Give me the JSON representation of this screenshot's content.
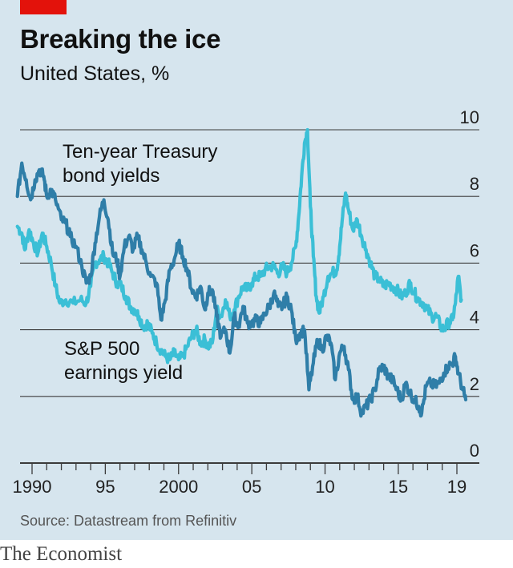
{
  "header": {
    "title": "Breaking the ice",
    "subtitle": "United States, %"
  },
  "footer": {
    "source": "Source: Datastream from Refinitiv",
    "brand": "The Economist"
  },
  "colors": {
    "background": "#d6e5ee",
    "accent": "#e3120b",
    "treasury": "#2f7ea8",
    "sp500": "#3bbfd6",
    "gridline": "#3b3b3b"
  },
  "chart_data": {
    "type": "line",
    "x_range": [
      1989,
      2020
    ],
    "ylim": [
      0,
      10
    ],
    "y_ticks": [
      0,
      2,
      4,
      6,
      8,
      10
    ],
    "y_tick_labels": [
      "0",
      "2",
      "4",
      "6",
      "8",
      "10"
    ],
    "x_tick_labels": [
      {
        "year": 1990,
        "label": "1990"
      },
      {
        "year": 1995,
        "label": "95"
      },
      {
        "year": 2000,
        "label": "2000"
      },
      {
        "year": 2005,
        "label": "05"
      },
      {
        "year": 2010,
        "label": "10"
      },
      {
        "year": 2015,
        "label": "15"
      },
      {
        "year": 2019,
        "label": "19"
      }
    ],
    "grid": "horizontal",
    "y_axis_position": "right",
    "series": [
      {
        "name": "Ten-year Treasury bond yields",
        "label_lines": [
          "Ten-year Treasury",
          "bond yields"
        ],
        "color": "#2f7ea8",
        "points": [
          [
            1989.0,
            8.0
          ],
          [
            1989.3,
            9.0
          ],
          [
            1989.6,
            8.5
          ],
          [
            1989.9,
            7.9
          ],
          [
            1990.2,
            8.5
          ],
          [
            1990.5,
            8.8
          ],
          [
            1990.8,
            8.6
          ],
          [
            1991.0,
            8.0
          ],
          [
            1991.3,
            8.2
          ],
          [
            1991.6,
            7.9
          ],
          [
            1992.0,
            7.3
          ],
          [
            1992.3,
            7.2
          ],
          [
            1992.6,
            6.8
          ],
          [
            1993.0,
            6.5
          ],
          [
            1993.4,
            5.9
          ],
          [
            1993.7,
            5.4
          ],
          [
            1994.0,
            5.6
          ],
          [
            1994.3,
            6.6
          ],
          [
            1994.6,
            7.4
          ],
          [
            1994.9,
            7.9
          ],
          [
            1995.2,
            7.3
          ],
          [
            1995.5,
            6.3
          ],
          [
            1995.8,
            6.1
          ],
          [
            1996.0,
            5.6
          ],
          [
            1996.3,
            6.5
          ],
          [
            1996.6,
            6.8
          ],
          [
            1996.9,
            6.4
          ],
          [
            1997.2,
            6.8
          ],
          [
            1997.5,
            6.4
          ],
          [
            1997.8,
            6.0
          ],
          [
            1998.1,
            5.6
          ],
          [
            1998.5,
            5.4
          ],
          [
            1998.8,
            4.3
          ],
          [
            1999.1,
            4.9
          ],
          [
            1999.4,
            5.8
          ],
          [
            1999.7,
            6.1
          ],
          [
            2000.0,
            6.6
          ],
          [
            2000.3,
            6.2
          ],
          [
            2000.6,
            5.8
          ],
          [
            2000.9,
            5.2
          ],
          [
            2001.2,
            5.0
          ],
          [
            2001.5,
            5.3
          ],
          [
            2001.8,
            4.6
          ],
          [
            2002.0,
            5.1
          ],
          [
            2002.3,
            5.2
          ],
          [
            2002.6,
            4.4
          ],
          [
            2002.9,
            3.8
          ],
          [
            2003.2,
            4.0
          ],
          [
            2003.5,
            3.3
          ],
          [
            2003.8,
            4.4
          ],
          [
            2004.1,
            4.1
          ],
          [
            2004.4,
            4.7
          ],
          [
            2004.7,
            4.2
          ],
          [
            2005.0,
            4.2
          ],
          [
            2005.3,
            4.3
          ],
          [
            2005.6,
            4.2
          ],
          [
            2005.9,
            4.5
          ],
          [
            2006.2,
            4.7
          ],
          [
            2006.5,
            5.1
          ],
          [
            2006.8,
            4.7
          ],
          [
            2007.1,
            4.7
          ],
          [
            2007.4,
            5.0
          ],
          [
            2007.7,
            4.6
          ],
          [
            2008.0,
            3.7
          ],
          [
            2008.3,
            3.9
          ],
          [
            2008.6,
            4.0
          ],
          [
            2008.9,
            2.2
          ],
          [
            2009.2,
            3.0
          ],
          [
            2009.5,
            3.7
          ],
          [
            2009.8,
            3.4
          ],
          [
            2010.1,
            3.8
          ],
          [
            2010.4,
            3.6
          ],
          [
            2010.7,
            2.5
          ],
          [
            2011.0,
            3.3
          ],
          [
            2011.3,
            3.5
          ],
          [
            2011.6,
            2.8
          ],
          [
            2011.9,
            1.9
          ],
          [
            2012.2,
            2.0
          ],
          [
            2012.5,
            1.5
          ],
          [
            2012.8,
            1.7
          ],
          [
            2013.1,
            1.9
          ],
          [
            2013.4,
            2.2
          ],
          [
            2013.7,
            2.8
          ],
          [
            2014.0,
            2.9
          ],
          [
            2014.3,
            2.6
          ],
          [
            2014.6,
            2.5
          ],
          [
            2014.9,
            2.2
          ],
          [
            2015.2,
            1.9
          ],
          [
            2015.5,
            2.4
          ],
          [
            2015.8,
            2.1
          ],
          [
            2016.1,
            1.9
          ],
          [
            2016.4,
            1.7
          ],
          [
            2016.6,
            1.5
          ],
          [
            2016.9,
            2.3
          ],
          [
            2017.2,
            2.4
          ],
          [
            2017.5,
            2.3
          ],
          [
            2017.8,
            2.4
          ],
          [
            2018.1,
            2.7
          ],
          [
            2018.4,
            2.9
          ],
          [
            2018.7,
            3.0
          ],
          [
            2018.9,
            3.2
          ],
          [
            2019.1,
            2.7
          ],
          [
            2019.4,
            2.2
          ],
          [
            2019.6,
            1.9
          ]
        ]
      },
      {
        "name": "S&P 500 earnings yield",
        "label_lines": [
          "S&P 500",
          "earnings yield"
        ],
        "color": "#3bbfd6",
        "points": [
          [
            1989.0,
            7.1
          ],
          [
            1989.3,
            6.9
          ],
          [
            1989.5,
            6.4
          ],
          [
            1989.8,
            7.0
          ],
          [
            1990.1,
            6.6
          ],
          [
            1990.4,
            6.3
          ],
          [
            1990.7,
            6.9
          ],
          [
            1991.0,
            6.5
          ],
          [
            1991.3,
            6.0
          ],
          [
            1991.6,
            5.3
          ],
          [
            1991.9,
            4.8
          ],
          [
            1992.3,
            4.9
          ],
          [
            1992.8,
            4.8
          ],
          [
            1993.3,
            4.9
          ],
          [
            1993.7,
            4.8
          ],
          [
            1994.0,
            5.3
          ],
          [
            1994.3,
            6.0
          ],
          [
            1994.6,
            6.1
          ],
          [
            1994.9,
            6.2
          ],
          [
            1995.2,
            6.0
          ],
          [
            1995.5,
            5.7
          ],
          [
            1995.8,
            5.4
          ],
          [
            1996.1,
            5.3
          ],
          [
            1996.4,
            5.0
          ],
          [
            1996.7,
            4.7
          ],
          [
            1997.0,
            4.6
          ],
          [
            1997.3,
            4.4
          ],
          [
            1997.6,
            4.1
          ],
          [
            1997.9,
            4.2
          ],
          [
            1998.2,
            3.9
          ],
          [
            1998.5,
            3.6
          ],
          [
            1998.8,
            3.4
          ],
          [
            1999.1,
            3.2
          ],
          [
            1999.4,
            3.1
          ],
          [
            1999.7,
            3.3
          ],
          [
            2000.0,
            3.1
          ],
          [
            2000.3,
            3.2
          ],
          [
            2000.6,
            3.5
          ],
          [
            2000.9,
            3.8
          ],
          [
            2001.2,
            4.0
          ],
          [
            2001.5,
            3.6
          ],
          [
            2001.8,
            3.7
          ],
          [
            2002.0,
            3.5
          ],
          [
            2002.3,
            3.6
          ],
          [
            2002.6,
            4.6
          ],
          [
            2002.9,
            4.4
          ],
          [
            2003.2,
            4.9
          ],
          [
            2003.5,
            4.4
          ],
          [
            2003.8,
            4.6
          ],
          [
            2004.1,
            5.0
          ],
          [
            2004.4,
            5.3
          ],
          [
            2004.7,
            5.2
          ],
          [
            2005.0,
            5.4
          ],
          [
            2005.3,
            5.6
          ],
          [
            2005.6,
            5.6
          ],
          [
            2005.9,
            5.8
          ],
          [
            2006.2,
            5.9
          ],
          [
            2006.5,
            5.9
          ],
          [
            2006.8,
            5.7
          ],
          [
            2007.1,
            5.9
          ],
          [
            2007.4,
            5.7
          ],
          [
            2007.7,
            6.0
          ],
          [
            2008.0,
            6.5
          ],
          [
            2008.2,
            7.4
          ],
          [
            2008.4,
            8.6
          ],
          [
            2008.6,
            9.6
          ],
          [
            2008.8,
            10.0
          ],
          [
            2009.0,
            7.7
          ],
          [
            2009.2,
            6.2
          ],
          [
            2009.4,
            5.0
          ],
          [
            2009.6,
            4.5
          ],
          [
            2009.9,
            5.0
          ],
          [
            2010.2,
            5.6
          ],
          [
            2010.5,
            5.7
          ],
          [
            2010.8,
            5.8
          ],
          [
            2011.0,
            6.5
          ],
          [
            2011.2,
            7.4
          ],
          [
            2011.4,
            8.1
          ],
          [
            2011.6,
            7.6
          ],
          [
            2011.9,
            7.0
          ],
          [
            2012.2,
            7.3
          ],
          [
            2012.5,
            6.8
          ],
          [
            2012.8,
            6.4
          ],
          [
            2013.1,
            6.0
          ],
          [
            2013.4,
            5.6
          ],
          [
            2013.7,
            5.5
          ],
          [
            2014.0,
            5.3
          ],
          [
            2014.3,
            5.4
          ],
          [
            2014.6,
            5.3
          ],
          [
            2014.9,
            5.2
          ],
          [
            2015.2,
            5.0
          ],
          [
            2015.5,
            5.1
          ],
          [
            2015.8,
            5.4
          ],
          [
            2016.1,
            5.1
          ],
          [
            2016.4,
            4.9
          ],
          [
            2016.7,
            4.8
          ],
          [
            2017.0,
            4.6
          ],
          [
            2017.3,
            4.4
          ],
          [
            2017.6,
            4.4
          ],
          [
            2017.9,
            4.1
          ],
          [
            2018.1,
            4.0
          ],
          [
            2018.4,
            4.2
          ],
          [
            2018.7,
            4.3
          ],
          [
            2018.9,
            4.8
          ],
          [
            2019.1,
            5.6
          ],
          [
            2019.3,
            4.9
          ]
        ]
      }
    ]
  }
}
